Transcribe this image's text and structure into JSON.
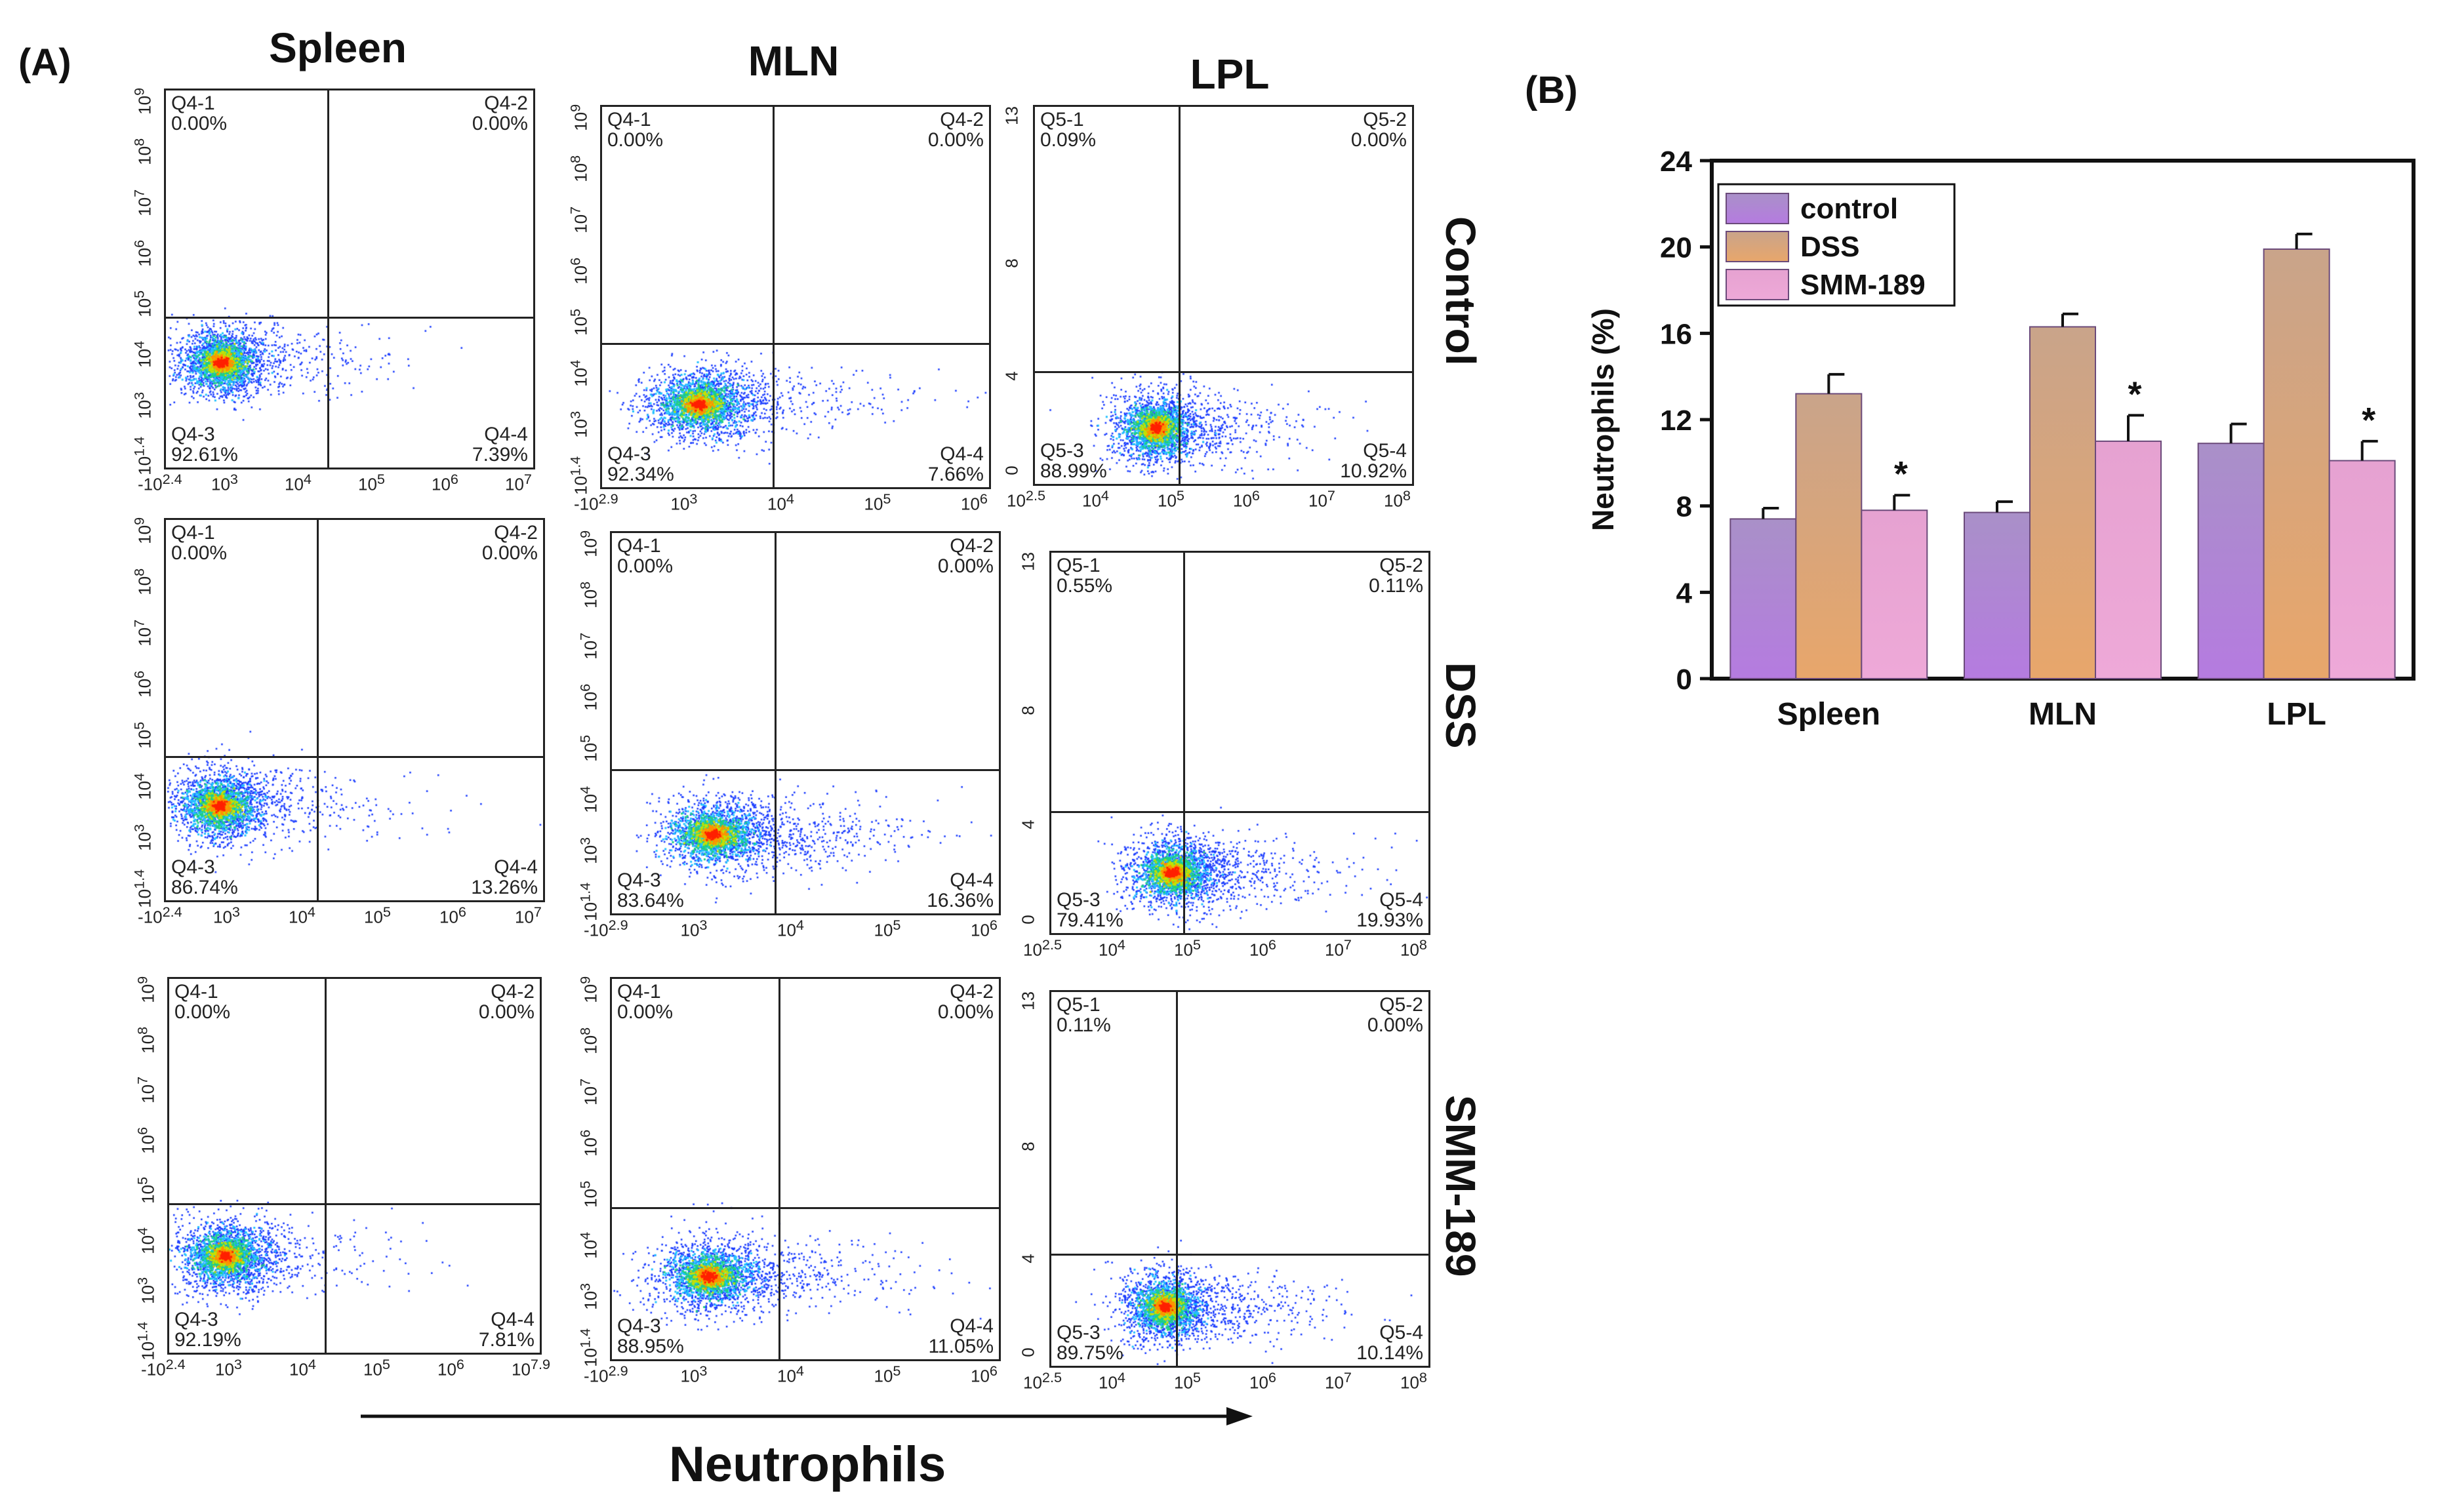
{
  "panel_a": {
    "label": "(A)",
    "columns": [
      "Spleen",
      "MLN",
      "LPL"
    ],
    "rows": [
      "Control",
      "DSS",
      "SMM-189"
    ],
    "x_axis_label": "Neutrophils",
    "plots": [
      {
        "id": "spleen-control",
        "gate": "Q4",
        "q1": "0.00%",
        "q2": "0.00%",
        "q3": "92.61%",
        "q4": "7.39%",
        "yticks": [
          "10^{1.4}",
          "10^3",
          "10^4",
          "10^5",
          "10^6",
          "10^7",
          "10^8",
          "10^9"
        ],
        "xticks": [
          "-10^{2.4}",
          "10^3",
          "10^4",
          "10^5",
          "10^6",
          "10^7"
        ]
      },
      {
        "id": "mln-control",
        "gate": "Q4",
        "q1": "0.00%",
        "q2": "0.00%",
        "q3": "92.34%",
        "q4": "7.66%",
        "yticks": [
          "10^{1.4}",
          "10^3",
          "10^4",
          "10^5",
          "10^6",
          "10^7",
          "10^8",
          "10^9"
        ],
        "xticks": [
          "-10^{2.9}",
          "10^3",
          "10^4",
          "10^5",
          "10^6"
        ]
      },
      {
        "id": "lpl-control",
        "gate": "Q5",
        "q1": "0.09%",
        "q2": "0.00%",
        "q3": "88.99%",
        "q4": "10.92%",
        "yticks": [
          "0",
          "4",
          "8",
          "13"
        ],
        "xticks": [
          "10^{2.5}",
          "10^4",
          "10^5",
          "10^6",
          "10^7",
          "10^8"
        ]
      },
      {
        "id": "spleen-dss",
        "gate": "Q4",
        "q1": "0.00%",
        "q2": "0.00%",
        "q3": "86.74%",
        "q4": "13.26%",
        "yticks": [
          "10^{1.4}",
          "10^3",
          "10^4",
          "10^5",
          "10^6",
          "10^7",
          "10^8",
          "10^9"
        ],
        "xticks": [
          "-10^{2.4}",
          "10^3",
          "10^4",
          "10^5",
          "10^6",
          "10^7"
        ]
      },
      {
        "id": "mln-dss",
        "gate": "Q4",
        "q1": "0.00%",
        "q2": "0.00%",
        "q3": "83.64%",
        "q4": "16.36%",
        "yticks": [
          "10^{1.4}",
          "10^3",
          "10^4",
          "10^5",
          "10^6",
          "10^7",
          "10^8",
          "10^9"
        ],
        "xticks": [
          "-10^{2.9}",
          "10^3",
          "10^4",
          "10^5",
          "10^6"
        ]
      },
      {
        "id": "lpl-dss",
        "gate": "Q5",
        "q1": "0.55%",
        "q2": "0.11%",
        "q3": "79.41%",
        "q4": "19.93%",
        "yticks": [
          "0",
          "4",
          "8",
          "13"
        ],
        "xticks": [
          "10^{2.5}",
          "10^4",
          "10^5",
          "10^6",
          "10^7",
          "10^8"
        ]
      },
      {
        "id": "spleen-smm",
        "gate": "Q4",
        "q1": "0.00%",
        "q2": "0.00%",
        "q3": "92.19%",
        "q4": "7.81%",
        "yticks": [
          "10^{1.4}",
          "10^3",
          "10^4",
          "10^5",
          "10^6",
          "10^7",
          "10^8",
          "10^9"
        ],
        "xticks": [
          "-10^{2.4}",
          "10^3",
          "10^4",
          "10^5",
          "10^6",
          "10^{7.9}"
        ]
      },
      {
        "id": "mln-smm",
        "gate": "Q4",
        "q1": "0.00%",
        "q2": "0.00%",
        "q3": "88.95%",
        "q4": "11.05%",
        "yticks": [
          "10^{1.4}",
          "10^3",
          "10^4",
          "10^5",
          "10^6",
          "10^7",
          "10^8",
          "10^9"
        ],
        "xticks": [
          "-10^{2.9}",
          "10^3",
          "10^4",
          "10^5",
          "10^6"
        ]
      },
      {
        "id": "lpl-smm",
        "gate": "Q5",
        "q1": "0.11%",
        "q2": "0.00%",
        "q3": "89.75%",
        "q4": "10.14%",
        "yticks": [
          "0",
          "4",
          "8",
          "13"
        ],
        "xticks": [
          "10^{2.5}",
          "10^4",
          "10^5",
          "10^6",
          "10^7",
          "10^8"
        ]
      }
    ]
  },
  "chart_data": {
    "type": "bar",
    "panel_label": "(B)",
    "title": "",
    "xlabel": "",
    "ylabel": "Neutrophils (%)",
    "ylim": [
      0,
      24
    ],
    "yticks": [
      0,
      4,
      8,
      12,
      16,
      20,
      24
    ],
    "categories": [
      "Spleen",
      "MLN",
      "LPL"
    ],
    "series": [
      {
        "name": "control",
        "values": [
          7.4,
          7.7,
          10.9
        ],
        "errors": [
          0.5,
          0.5,
          0.9
        ],
        "color": "#b57be0"
      },
      {
        "name": "DSS",
        "values": [
          13.2,
          16.3,
          19.9
        ],
        "errors": [
          0.9,
          0.6,
          0.7
        ],
        "color": "#e8a66b"
      },
      {
        "name": "SMM-189",
        "values": [
          7.8,
          11.0,
          10.1
        ],
        "errors": [
          0.7,
          1.2,
          0.9
        ],
        "color": "#eea9d8"
      }
    ],
    "annotations": [
      "*",
      "*",
      "*"
    ],
    "legend": "top-left"
  }
}
